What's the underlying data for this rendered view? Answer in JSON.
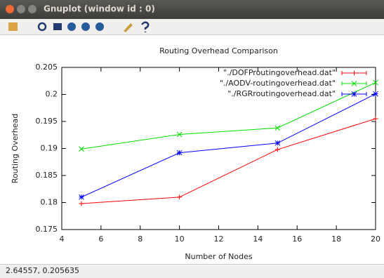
{
  "window": {
    "title": "Gnuplot (window id : 0)"
  },
  "status": "2.64557, 0.205635",
  "chart_data": {
    "type": "line",
    "title": "Routing Overhead Comparison",
    "x_label": "Number of Nodes",
    "y_label": "Routing Overhead",
    "x": [
      5,
      10,
      15,
      20
    ],
    "series": [
      {
        "name": "\"./DOFProutingoverhead.dat\"",
        "color": "#ff0000",
        "marker": "plus",
        "values": [
          0.1798,
          0.181,
          0.1898,
          0.1955
        ]
      },
      {
        "name": "\"./AODV-routingoverhead.dat\"",
        "color": "#00dd00",
        "marker": "cross",
        "values": [
          0.1899,
          0.1926,
          0.1938,
          0.2022
        ]
      },
      {
        "name": "\"./RGRroutingoverhead.dat\"",
        "color": "#0000ff",
        "marker": "star",
        "values": [
          0.181,
          0.1892,
          0.191,
          0.2001
        ]
      }
    ],
    "xlim": [
      4,
      20
    ],
    "xticks": [
      4,
      6,
      8,
      10,
      12,
      14,
      16,
      18,
      20
    ],
    "ylim": [
      0.175,
      0.205
    ],
    "yticks": [
      0.175,
      0.18,
      0.185,
      0.19,
      0.195,
      0.2,
      0.205
    ],
    "grid": false,
    "legend": "top-right"
  }
}
